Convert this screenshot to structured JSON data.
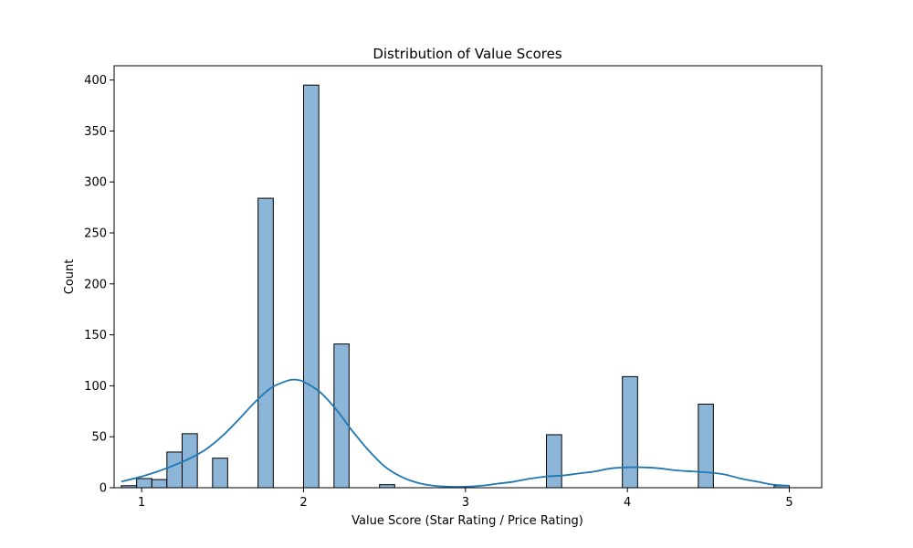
{
  "chart_data": {
    "type": "bar",
    "subtype": "histogram-with-kde",
    "title": "Distribution of Value Scores",
    "xlabel": "Value Score (Star Rating / Price Rating)",
    "ylabel": "Count",
    "xlim": [
      0.83,
      5.2
    ],
    "ylim": [
      0,
      414
    ],
    "xticks": [
      1,
      2,
      3,
      4,
      5
    ],
    "yticks": [
      0,
      50,
      100,
      150,
      200,
      250,
      300,
      350,
      400
    ],
    "grid": false,
    "legend": "none",
    "bar_color": "#8db5d7",
    "bar_edge_color": "#000000",
    "kde_color": "#1f77b4",
    "bins": [
      {
        "x0": 0.875,
        "x1": 0.969,
        "count": 2
      },
      {
        "x0": 0.969,
        "x1": 1.063,
        "count": 9
      },
      {
        "x0": 1.063,
        "x1": 1.156,
        "count": 8
      },
      {
        "x0": 1.156,
        "x1": 1.25,
        "count": 35
      },
      {
        "x0": 1.25,
        "x1": 1.344,
        "count": 53
      },
      {
        "x0": 1.438,
        "x1": 1.531,
        "count": 29
      },
      {
        "x0": 1.719,
        "x1": 1.813,
        "count": 284
      },
      {
        "x0": 2.0,
        "x1": 2.094,
        "count": 395
      },
      {
        "x0": 2.188,
        "x1": 2.281,
        "count": 141
      },
      {
        "x0": 2.469,
        "x1": 2.563,
        "count": 3
      },
      {
        "x0": 3.5,
        "x1": 3.594,
        "count": 52
      },
      {
        "x0": 3.969,
        "x1": 4.063,
        "count": 109
      },
      {
        "x0": 4.438,
        "x1": 4.531,
        "count": 82
      },
      {
        "x0": 4.906,
        "x1": 5.0,
        "count": 2
      }
    ],
    "kde": {
      "x": [
        0.875,
        1.0,
        1.1,
        1.2,
        1.3,
        1.4,
        1.5,
        1.6,
        1.7,
        1.8,
        1.9,
        1.95,
        2.0,
        2.1,
        2.2,
        2.3,
        2.4,
        2.5,
        2.6,
        2.7,
        2.8,
        2.9,
        3.0,
        3.1,
        3.2,
        3.3,
        3.4,
        3.5,
        3.6,
        3.7,
        3.8,
        3.9,
        4.0,
        4.1,
        4.2,
        4.3,
        4.4,
        4.5,
        4.6,
        4.7,
        4.8,
        4.9,
        5.0
      ],
      "y": [
        6,
        11,
        16,
        22,
        29,
        38,
        51,
        67,
        84,
        98,
        105,
        106,
        104,
        94,
        77,
        56,
        37,
        21,
        11,
        5,
        2,
        1,
        1,
        2,
        4,
        6,
        9,
        11,
        12,
        14,
        16,
        19,
        20,
        20,
        19,
        17,
        16,
        15,
        13,
        9,
        6,
        3,
        2
      ]
    }
  }
}
